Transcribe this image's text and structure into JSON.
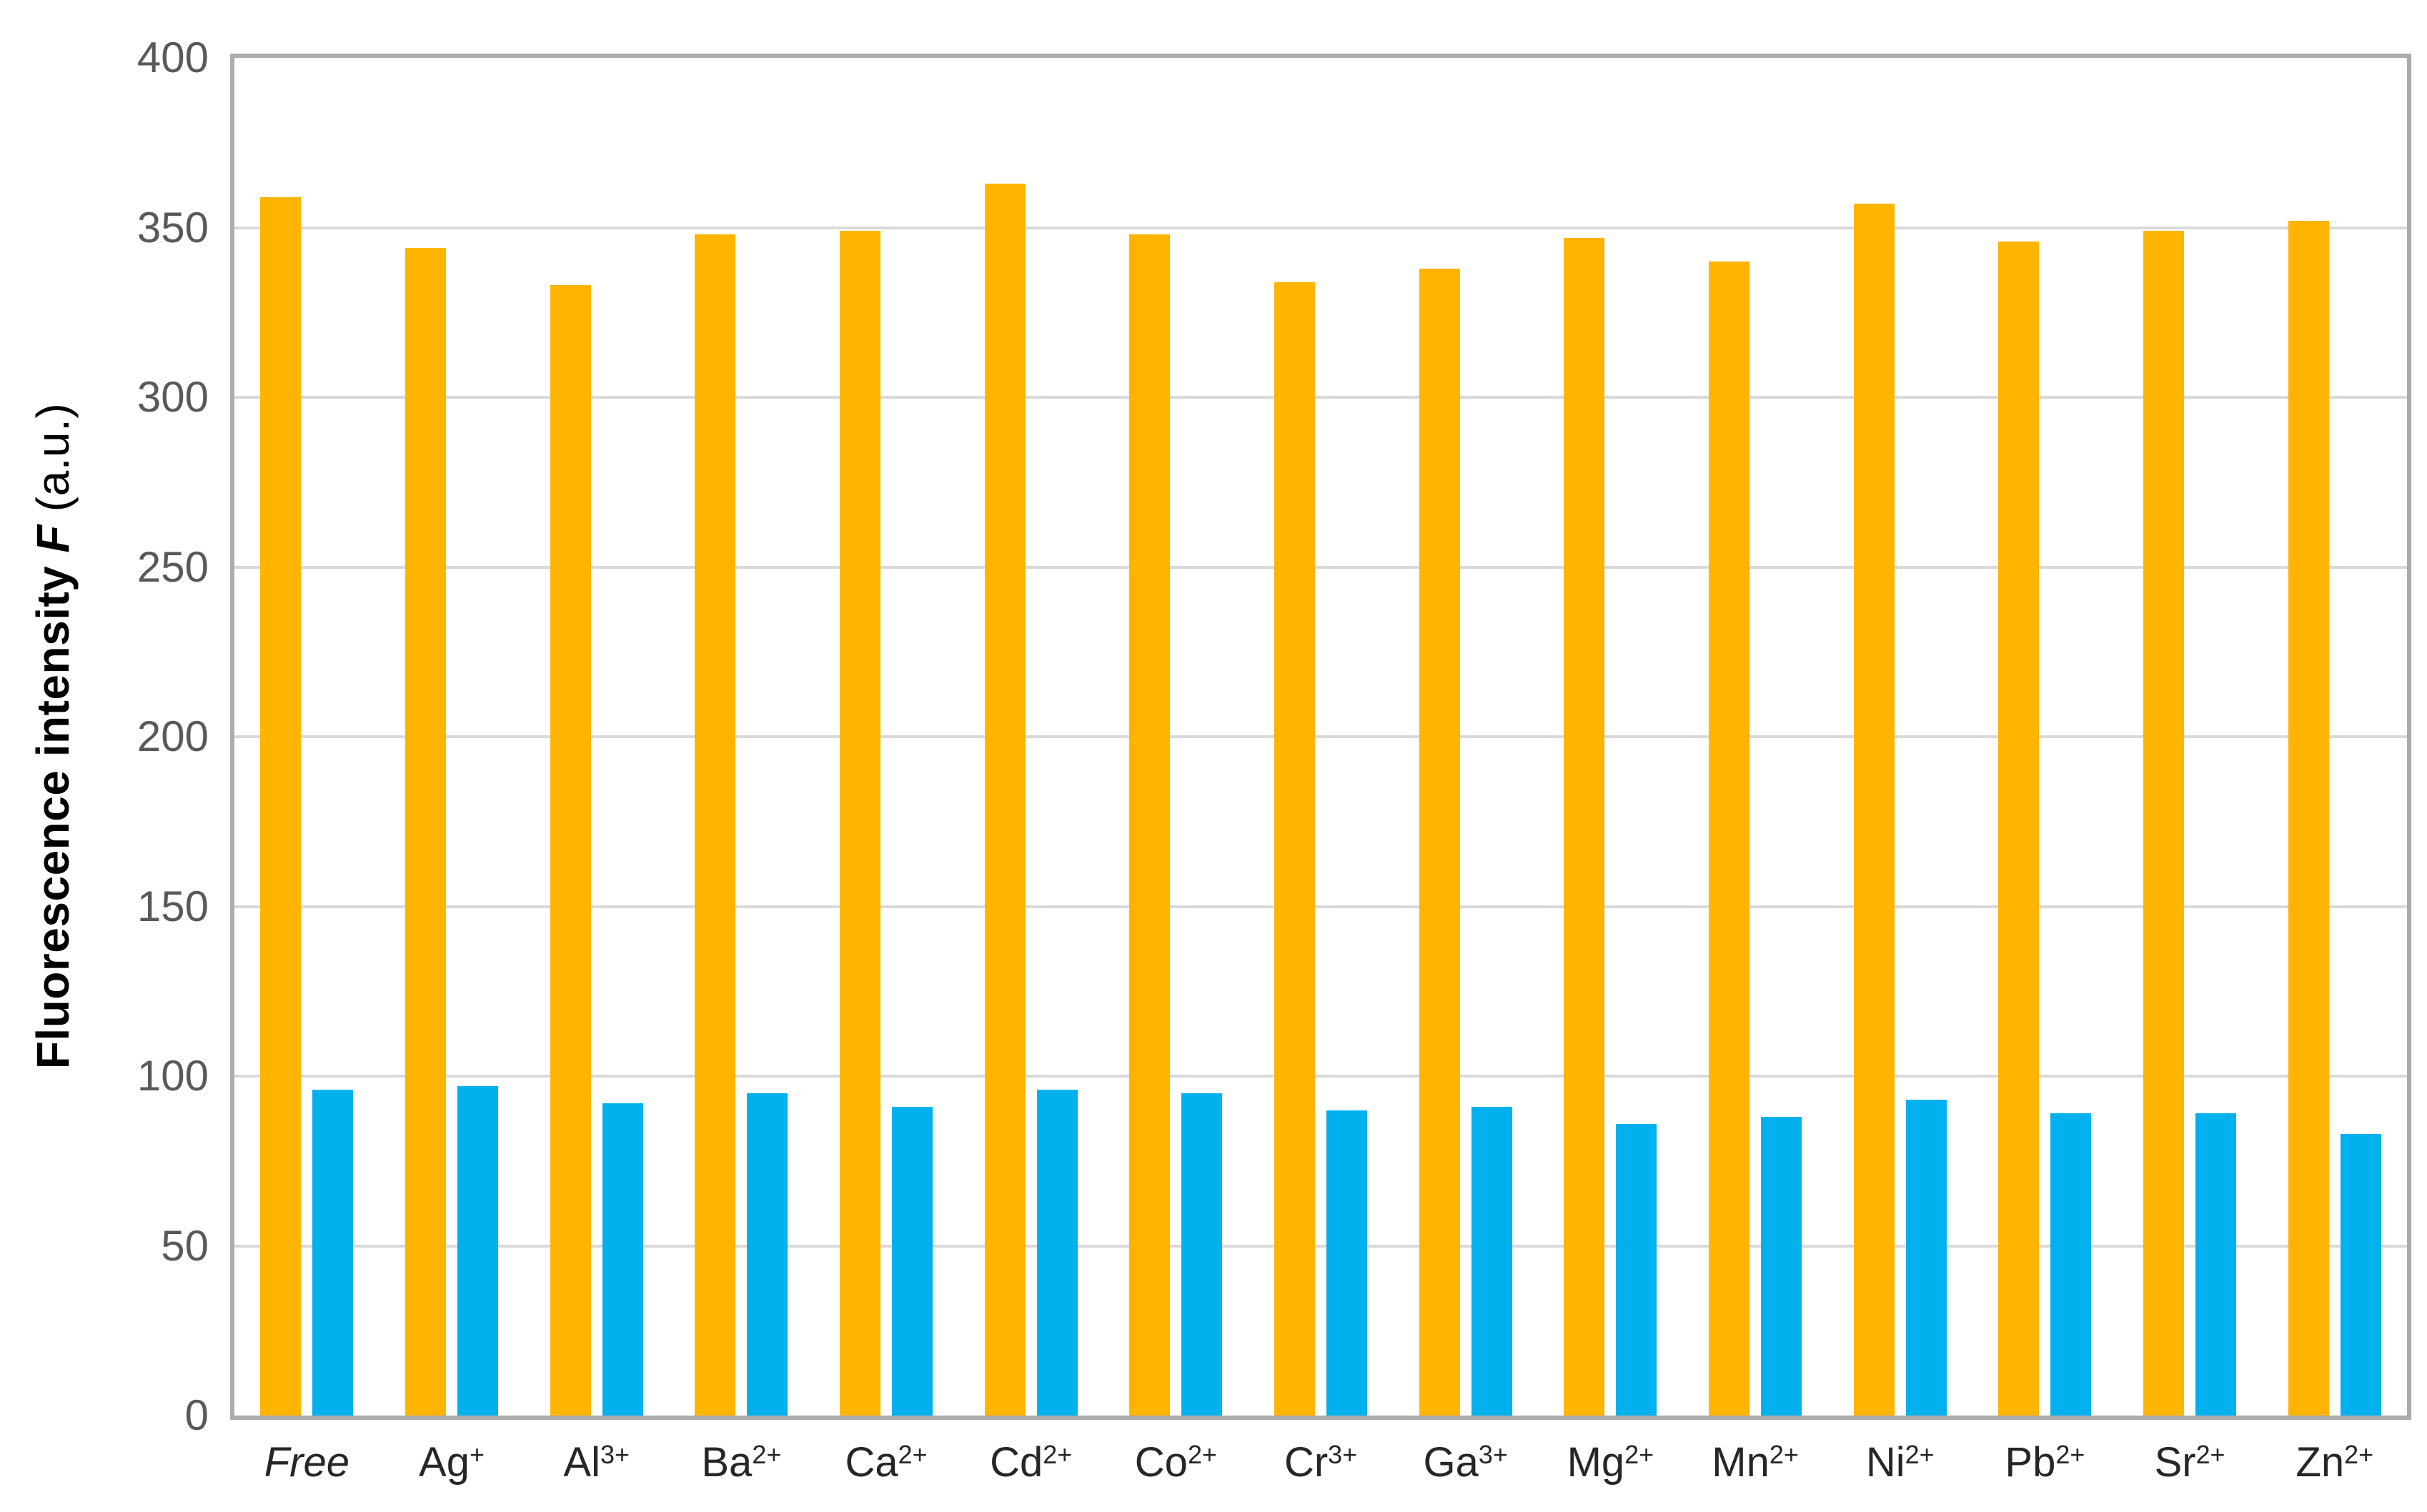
{
  "chart_data": {
    "type": "bar",
    "title": "",
    "xlabel": "",
    "ylabel": "Fluorescence intensity F (a.u.)",
    "ylabel_parts": {
      "bold": "Fluorescence intensity",
      "italic": "F",
      "unit": "(a.u.)"
    },
    "ylim": [
      0,
      400
    ],
    "yticks": [
      0,
      50,
      100,
      150,
      200,
      250,
      300,
      350,
      400
    ],
    "grid": "horizontal",
    "legend_position": "none",
    "style": {
      "gridline_color": "#D9D9D9",
      "frame_color": "#ACACAC",
      "ytick_label_color": "#595959",
      "category_label_color": "#262626",
      "orange_color": "#FFB400",
      "blue_color": "#00B1EE"
    },
    "categories": [
      {
        "label": "Free",
        "base": "Free",
        "sup": "",
        "italic": true
      },
      {
        "label": "Ag+",
        "base": "Ag",
        "sup": "+",
        "italic": false
      },
      {
        "label": "Al3+",
        "base": "Al",
        "sup": "3+",
        "italic": false
      },
      {
        "label": "Ba2+",
        "base": "Ba",
        "sup": "2+",
        "italic": false
      },
      {
        "label": "Ca2+",
        "base": "Ca",
        "sup": "2+",
        "italic": false
      },
      {
        "label": "Cd2+",
        "base": "Cd",
        "sup": "2+",
        "italic": false
      },
      {
        "label": "Co2+",
        "base": "Co",
        "sup": "2+",
        "italic": false
      },
      {
        "label": "Cr3+",
        "base": "Cr",
        "sup": "3+",
        "italic": false
      },
      {
        "label": "Ga3+",
        "base": "Ga",
        "sup": "3+",
        "italic": false
      },
      {
        "label": "Mg2+",
        "base": "Mg",
        "sup": "2+",
        "italic": false
      },
      {
        "label": "Mn2+",
        "base": "Mn",
        "sup": "2+",
        "italic": false
      },
      {
        "label": "Ni2+",
        "base": "Ni",
        "sup": "2+",
        "italic": false
      },
      {
        "label": "Pb2+",
        "base": "Pb",
        "sup": "2+",
        "italic": false
      },
      {
        "label": "Sr2+",
        "base": "Sr",
        "sup": "2+",
        "italic": false
      },
      {
        "label": "Zn2+",
        "base": "Zn",
        "sup": "2+",
        "italic": false
      }
    ],
    "series": [
      {
        "name": "orange",
        "color": "#FFB400",
        "values": [
          359,
          344,
          333,
          348,
          349,
          363,
          348,
          334,
          338,
          347,
          340,
          357,
          346,
          349,
          352
        ]
      },
      {
        "name": "blue",
        "color": "#00B1EE",
        "values": [
          96,
          97,
          92,
          95,
          91,
          96,
          95,
          90,
          91,
          86,
          88,
          93,
          89,
          89,
          83
        ]
      }
    ]
  }
}
